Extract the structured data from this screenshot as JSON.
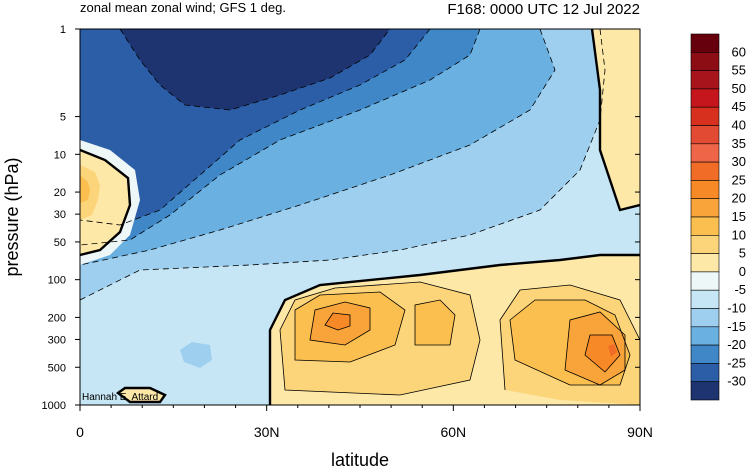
{
  "header": {
    "left_title": "zonal mean zonal wind; GFS 1 deg.",
    "right_title": "F168: 0000 UTC 12 Jul 2022"
  },
  "credit": "Hannah E. Attard",
  "chart_data": {
    "type": "contour",
    "xlabel": "latitude",
    "ylabel": "pressure (hPa)",
    "x_ticks": [
      {
        "value": 0,
        "label": "0"
      },
      {
        "value": 30,
        "label": "30N"
      },
      {
        "value": 60,
        "label": "60N"
      },
      {
        "value": 90,
        "label": "90N"
      }
    ],
    "y_scale": "log",
    "y_ticks": [
      {
        "value": 1,
        "label": "1"
      },
      {
        "value": 5,
        "label": "5"
      },
      {
        "value": 10,
        "label": "10"
      },
      {
        "value": 20,
        "label": "20"
      },
      {
        "value": 30,
        "label": "30"
      },
      {
        "value": 50,
        "label": "50"
      },
      {
        "value": 100,
        "label": "100"
      },
      {
        "value": 200,
        "label": "200"
      },
      {
        "value": 300,
        "label": "300"
      },
      {
        "value": 500,
        "label": "500"
      },
      {
        "value": 1000,
        "label": "1000"
      }
    ],
    "xlim": [
      0,
      90
    ],
    "ylim": [
      1000,
      1
    ],
    "colorbar": {
      "labels": [
        "60",
        "55",
        "50",
        "45",
        "40",
        "35",
        "30",
        "25",
        "20",
        "15",
        "10",
        "5",
        "0",
        "-5",
        "-10",
        "-15",
        "-20",
        "-25",
        "-30"
      ],
      "colors": [
        "#67000d",
        "#8c0d14",
        "#a8141b",
        "#c4161c",
        "#d7301f",
        "#e34a33",
        "#ef6548",
        "#f16d27",
        "#f78a26",
        "#f9a43a",
        "#fbbf4f",
        "#fcd57a",
        "#fde8a8",
        "#eef7f8",
        "#c6e6f5",
        "#9fcfee",
        "#6ab0e0",
        "#3f87c7",
        "#2c5ea8",
        "#1d3470"
      ]
    },
    "features": [
      {
        "name": "stratospheric easterly core",
        "value_min": -30,
        "lat_range": [
          5,
          55
        ],
        "pressure_range": [
          1,
          5
        ]
      },
      {
        "name": "low-latitude stratospheric westerly",
        "value_max": 20,
        "lat": 0,
        "pressure": 20
      },
      {
        "name": "mid-latitude tropospheric jet",
        "value_max": 20,
        "lat": 41,
        "pressure": 200
      },
      {
        "name": "polar tropospheric maximum",
        "value_max": 25,
        "lat": 87,
        "pressure": 400
      }
    ]
  }
}
